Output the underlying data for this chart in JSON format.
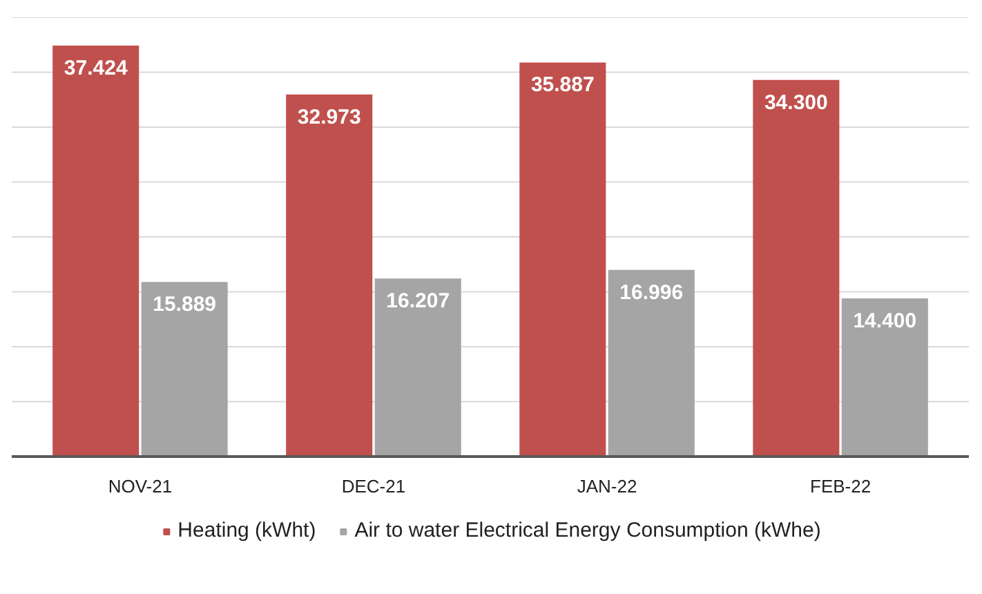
{
  "chart_data": {
    "type": "bar",
    "categories": [
      "NOV-21",
      "DEC-21",
      "JAN-22",
      "FEB-22"
    ],
    "series": [
      {
        "name": "Heating (kWht)",
        "color": "#c0504d",
        "values": [
          37.424,
          32.973,
          35.887,
          34.3
        ],
        "value_labels": [
          "37.424",
          "32.973",
          "35.887",
          "34.300"
        ]
      },
      {
        "name": "Air to water Electrical Energy Consumption (kWhe)",
        "color": "#a5a5a5",
        "values": [
          15.889,
          16.207,
          16.996,
          14.4
        ],
        "value_labels": [
          "15.889",
          "16.207",
          "16.996",
          "14.400"
        ]
      }
    ],
    "ylim": [
      0,
      40
    ],
    "yticks": [
      {
        "value": 0,
        "label": null
      },
      {
        "value": 5,
        "label": null
      },
      {
        "value": 10,
        "label": null
      },
      {
        "value": 15,
        "label": null
      },
      {
        "value": 20,
        "label": null
      },
      {
        "value": 25,
        "label": null
      },
      {
        "value": 30,
        "label": null
      },
      {
        "value": 35,
        "label": null
      },
      {
        "value": 40,
        "label": null
      }
    ],
    "grid": "y",
    "tick_labels": "x",
    "legend": "bottom"
  }
}
